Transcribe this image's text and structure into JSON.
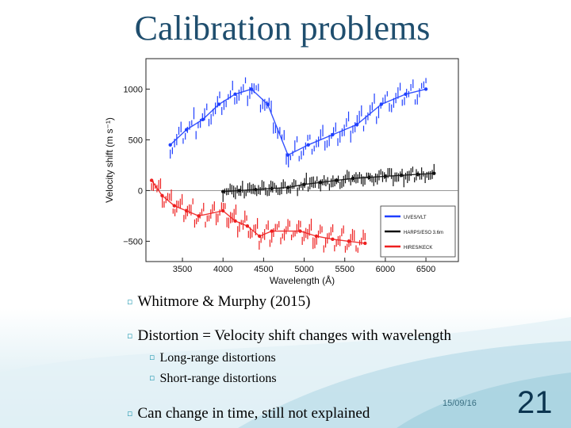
{
  "slide": {
    "title": "Calibration problems",
    "bullets": [
      "Whitmore & Murphy (2015)",
      "Distortion = Velocity shift changes with wavelength",
      "Long-range distortions",
      "Short-range distortions",
      "Can change in time, still not explained"
    ],
    "date": "15/09/16",
    "page_number": "21",
    "colors": {
      "title": "#1f4e6e",
      "bullet": "#2f9fb5",
      "uves": "#1f3fff",
      "harps": "#111111",
      "hirres": "#ee1f1f"
    }
  },
  "chart_data": {
    "type": "scatter",
    "xlabel": "Wavelength (Å)",
    "ylabel": "Velocity shift (m s⁻¹)",
    "xlim": [
      3050,
      6900
    ],
    "ylim": [
      -700,
      1300
    ],
    "xticks": [
      "3500",
      "4000",
      "4500",
      "5000",
      "5500",
      "6000",
      "6500"
    ],
    "yticks": [
      "1000",
      "500",
      "0",
      "−500"
    ],
    "zero_line": 0,
    "legend": {
      "position": "bottom-right",
      "entries": [
        "UVES/VLT",
        "HARPS/ESO 3.6m",
        "HIRES/KECK"
      ]
    },
    "series": [
      {
        "name": "UVES/VLT",
        "color": "#1f3fff",
        "x": [
          3350,
          3550,
          3750,
          3950,
          4150,
          4350,
          4550,
          4800,
          5050,
          5350,
          5650,
          5950,
          6250,
          6500
        ],
        "y": [
          450,
          600,
          700,
          850,
          950,
          1000,
          850,
          350,
          450,
          550,
          650,
          850,
          950,
          1000
        ]
      },
      {
        "name": "HARPS/ESO 3.6m",
        "color": "#111111",
        "x": [
          4000,
          4200,
          4400,
          4600,
          4800,
          5000,
          5200,
          5400,
          5600,
          5800,
          6000,
          6200,
          6400,
          6600
        ],
        "y": [
          -10,
          0,
          10,
          20,
          30,
          60,
          80,
          100,
          120,
          130,
          140,
          150,
          160,
          170
        ]
      },
      {
        "name": "HIRES/KECK",
        "color": "#ee1f1f",
        "x": [
          3120,
          3250,
          3400,
          3550,
          3700,
          4000,
          4150,
          4300,
          4450,
          4600,
          4950,
          5150,
          5350,
          5550,
          5750
        ],
        "y": [
          100,
          -50,
          -150,
          -200,
          -250,
          -200,
          -300,
          -350,
          -450,
          -400,
          -400,
          -450,
          -480,
          -500,
          -520
        ]
      }
    ]
  }
}
